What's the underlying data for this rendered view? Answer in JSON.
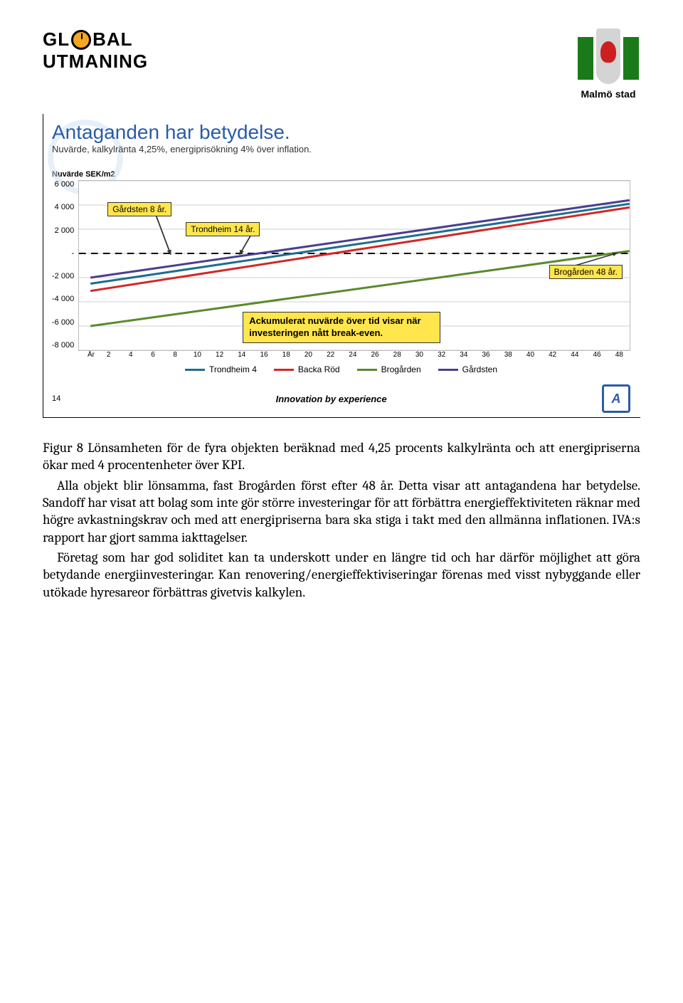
{
  "header": {
    "logo_left_line1a": "GL",
    "logo_left_line1b": "BAL",
    "logo_left_line2": "UTMANING",
    "logo_right_caption": "Malmö stad"
  },
  "figure": {
    "title": "Antaganden har betydelse.",
    "subtitle": "Nuvärde, kalkylränta 4,25%, energiprisökning 4% över inflation.",
    "y_axis_label": "Nuvärde SEK/m2",
    "y_ticks": [
      "6 000",
      "4 000",
      "2 000",
      "-",
      "-2 000",
      "-4 000",
      "-6 000",
      "-8 000"
    ],
    "y_min": -8000,
    "y_max": 6000,
    "x_label": "År",
    "x_ticks": [
      "2",
      "4",
      "6",
      "8",
      "10",
      "12",
      "14",
      "16",
      "18",
      "20",
      "22",
      "24",
      "26",
      "28",
      "30",
      "32",
      "34",
      "36",
      "38",
      "40",
      "42",
      "44",
      "46",
      "48"
    ],
    "x_min": 0,
    "x_max": 48,
    "series": [
      {
        "name": "Trondheim 4",
        "color": "#1f6e8c",
        "points": [
          [
            1,
            -2500
          ],
          [
            48,
            4100
          ]
        ]
      },
      {
        "name": "Backa Röd",
        "color": "#d22727",
        "points": [
          [
            1,
            -3100
          ],
          [
            48,
            3800
          ]
        ]
      },
      {
        "name": "Brogården",
        "color": "#5b8a2c",
        "points": [
          [
            1,
            -6000
          ],
          [
            48,
            200
          ]
        ]
      },
      {
        "name": "Gårdsten",
        "color": "#4a3f8f",
        "points": [
          [
            1,
            -2000
          ],
          [
            48,
            4400
          ]
        ]
      }
    ],
    "callouts": {
      "gardsten": "Gårdsten 8 år.",
      "trondheim": "Trondheim 14 år.",
      "brogarden": "Brogården 48 år.",
      "explain": "Ackumulerat nuvärde över tid visar när investeringen nått break-even."
    },
    "legend": [
      {
        "label": "Trondheim 4",
        "color": "#1f6e8c"
      },
      {
        "label": "Backa Röd",
        "color": "#d22727"
      },
      {
        "label": "Brogården",
        "color": "#5b8a2c"
      },
      {
        "label": "Gårdsten",
        "color": "#4a3f8f"
      }
    ],
    "slide_no": "14",
    "innovation": "Innovation by experience"
  },
  "text": {
    "caption": "Figur 8 Lönsamheten för de fyra objekten beräknad med 4,25 procents kalkylränta och att energipriserna ökar med 4 procentenheter över KPI.",
    "p1": "Alla objekt blir lönsamma, fast Brogården först efter 48 år. Detta visar att antagandena har betydelse. Sandoff har visat att bolag som inte gör större investeringar för att förbättra energieffektiviteten räknar med högre avkastningskrav och med att energipriserna bara ska stiga i takt med den allmänna inflationen. IVA:s rapport har gjort samma iakttagelser.",
    "p2": "Företag som har god soliditet kan ta underskott under en längre tid och har därför möjlighet att göra betydande energiinvesteringar. Kan renovering/energieffektiviseringar förenas med visst nybyggande eller utökade hyresareor förbättras givetvis kalkylen."
  }
}
